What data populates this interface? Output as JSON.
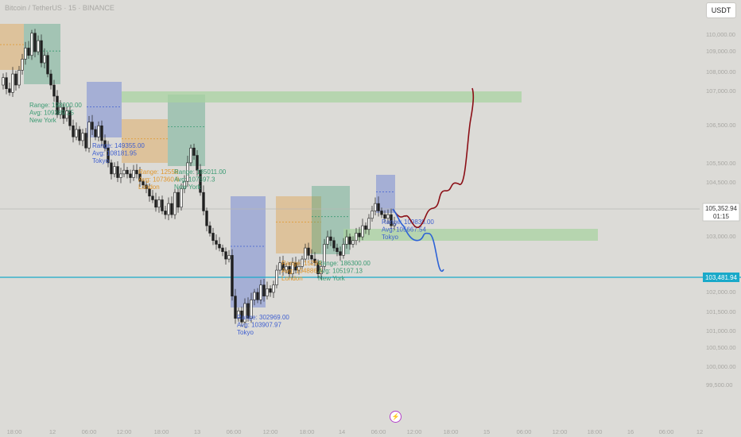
{
  "header": {
    "title": "Bitcoin / TetherUS · 15 · BINANCE",
    "currency": "USDT"
  },
  "price_labels": {
    "current": "105,352.94",
    "countdown": "01:15",
    "level": "103,481.94"
  },
  "colors": {
    "background": "#dcdbd7",
    "up": "#1f1f1f",
    "down": "#1f1f1f",
    "new_york": "#3a9a72",
    "tokyo": "#3f5fd0",
    "london": "#e0962b",
    "green_zone": "#a9d3a2",
    "cyan_line": "#19a9c9",
    "projection_up": "#8b0f16",
    "projection_down": "#2d62d6"
  },
  "chart_data": {
    "type": "candlestick",
    "y_ticks": [
      "110,000.00",
      "109,000.00",
      "108,000.00",
      "107,000.00",
      "106,500.00",
      "105,500.00",
      "104,500.00",
      "103,000.00",
      "102,000.00",
      "101,500.00",
      "101,000.00",
      "100,500.00",
      "100,000.00",
      "99,500.00"
    ],
    "x_ticks": [
      "18:00",
      "12",
      "06:00",
      "12:00",
      "18:00",
      "13",
      "06:00",
      "12:00",
      "18:00",
      "14",
      "06:00",
      "12:00",
      "18:00",
      "15",
      "06:00",
      "12:00",
      "18:00",
      "16",
      "06:00",
      "12"
    ],
    "sessions": [
      {
        "lines": [
          "Range: 198000.00",
          "Avg: 109389.25",
          "New York"
        ],
        "session": "new_york"
      },
      {
        "lines": [
          "Range: 149355.00",
          "Avg: 108181.95",
          "Tokyo"
        ],
        "session": "tokyo"
      },
      {
        "lines": [
          "Range: 12558",
          "Avg: 107360.6",
          "London"
        ],
        "session": "london"
      },
      {
        "lines": [
          "Range: 185011.00",
          "Avg: 107597.3",
          "New York"
        ],
        "session": "new_york"
      },
      {
        "lines": [
          "Range: 302969.00",
          "Avg: 103907.97",
          "Tokyo"
        ],
        "session": "tokyo"
      },
      {
        "lines": [
          "Range: 15294",
          "Avg: 104886.6",
          "London"
        ],
        "session": "london"
      },
      {
        "lines": [
          "Range: 186300.00",
          "Avg: 105197.13",
          "New York"
        ],
        "session": "new_york"
      },
      {
        "lines": [
          "Range: 109838.00",
          "Avg: 105667.54",
          "Tokyo"
        ],
        "session": "tokyo"
      }
    ],
    "close_path": [
      [
        0,
        108700
      ],
      [
        4,
        108900
      ],
      [
        8,
        108600
      ],
      [
        12,
        108500
      ],
      [
        16,
        109000
      ],
      [
        20,
        108700
      ],
      [
        24,
        109100
      ],
      [
        28,
        109400
      ],
      [
        32,
        109700
      ],
      [
        36,
        109500
      ],
      [
        40,
        110100
      ],
      [
        44,
        109600
      ],
      [
        48,
        109900
      ],
      [
        52,
        109300
      ],
      [
        56,
        109500
      ],
      [
        60,
        109000
      ],
      [
        64,
        108700
      ],
      [
        68,
        108400
      ],
      [
        72,
        107900
      ],
      [
        76,
        108100
      ],
      [
        80,
        107800
      ],
      [
        84,
        108000
      ],
      [
        88,
        107600
      ],
      [
        92,
        107300
      ],
      [
        96,
        107500
      ],
      [
        100,
        107200
      ],
      [
        104,
        107400
      ],
      [
        108,
        107000
      ],
      [
        112,
        107700
      ],
      [
        116,
        107500
      ],
      [
        120,
        107300
      ],
      [
        124,
        107600
      ],
      [
        128,
        107200
      ],
      [
        132,
        107000
      ],
      [
        136,
        106600
      ],
      [
        140,
        106300
      ],
      [
        144,
        106500
      ],
      [
        148,
        106200
      ],
      [
        152,
        106300
      ],
      [
        156,
        106400
      ],
      [
        160,
        106300
      ],
      [
        164,
        106200
      ],
      [
        168,
        106400
      ],
      [
        172,
        106300
      ],
      [
        176,
        106100
      ],
      [
        180,
        106000
      ],
      [
        184,
        105900
      ],
      [
        188,
        105700
      ],
      [
        192,
        105600
      ],
      [
        196,
        105400
      ],
      [
        200,
        105600
      ],
      [
        204,
        105300
      ],
      [
        208,
        105200
      ],
      [
        212,
        105500
      ],
      [
        216,
        105200
      ],
      [
        220,
        105800
      ],
      [
        224,
        105400
      ],
      [
        228,
        105900
      ],
      [
        232,
        106100
      ],
      [
        236,
        106600
      ],
      [
        240,
        107000
      ],
      [
        244,
        106800
      ],
      [
        248,
        106400
      ],
      [
        252,
        105800
      ],
      [
        256,
        105300
      ],
      [
        260,
        104900
      ],
      [
        264,
        104700
      ],
      [
        268,
        104500
      ],
      [
        272,
        104400
      ],
      [
        276,
        104300
      ],
      [
        280,
        104200
      ],
      [
        284,
        104000
      ],
      [
        288,
        104100
      ],
      [
        292,
        103000
      ],
      [
        296,
        102400
      ],
      [
        300,
        102600
      ],
      [
        304,
        102300
      ],
      [
        308,
        102800
      ],
      [
        312,
        102400
      ],
      [
        316,
        102900
      ],
      [
        320,
        103100
      ],
      [
        324,
        102900
      ],
      [
        328,
        103300
      ],
      [
        332,
        103000
      ],
      [
        336,
        103200
      ],
      [
        340,
        103100
      ],
      [
        344,
        103300
      ],
      [
        348,
        103700
      ],
      [
        352,
        103900
      ],
      [
        356,
        103700
      ],
      [
        360,
        103800
      ],
      [
        364,
        103600
      ],
      [
        368,
        103900
      ],
      [
        372,
        103700
      ],
      [
        376,
        103800
      ],
      [
        380,
        104000
      ],
      [
        384,
        104300
      ],
      [
        388,
        104100
      ],
      [
        392,
        104000
      ],
      [
        396,
        103900
      ],
      [
        400,
        103600
      ],
      [
        404,
        103800
      ],
      [
        408,
        104400
      ],
      [
        412,
        104600
      ],
      [
        416,
        104500
      ],
      [
        420,
        104300
      ],
      [
        424,
        104200
      ],
      [
        428,
        104100
      ],
      [
        432,
        104400
      ],
      [
        436,
        104600
      ],
      [
        440,
        104400
      ],
      [
        444,
        104500
      ],
      [
        448,
        104700
      ],
      [
        452,
        104600
      ],
      [
        456,
        104900
      ],
      [
        460,
        104800
      ],
      [
        464,
        105100
      ],
      [
        468,
        105300
      ],
      [
        472,
        105500
      ],
      [
        476,
        105300
      ],
      [
        480,
        105200
      ],
      [
        484,
        105100
      ],
      [
        488,
        105200
      ],
      [
        492,
        104900
      ],
      [
        496,
        104950
      ]
    ],
    "green_zones": [
      [
        107.75,
        107.55
      ],
      [
        104.95,
        104.75
      ]
    ],
    "level_line": 103481.94,
    "projection_up_shape": "wavy-rise-to-108000",
    "projection_down_shape": "dip-to-103400"
  }
}
